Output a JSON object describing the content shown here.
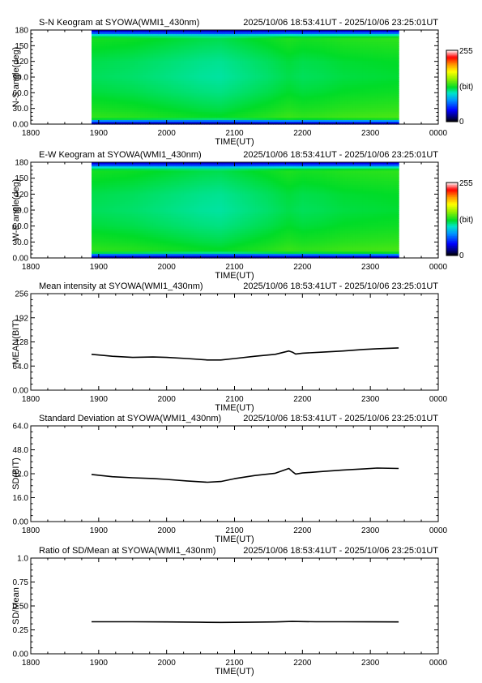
{
  "chart_data": [
    {
      "type": "heatmap",
      "title": "S-N Keogram at SYOWA(WMI1_430nm)",
      "time_range": "2025/10/06 18:53:41UT - 2025/10/06 23:25:01UT",
      "xlabel": "TIME(UT)",
      "ylabel": "N-S angle(deg)",
      "x_ticks": [
        "1800",
        "1900",
        "2000",
        "2100",
        "2200",
        "2300",
        "0000"
      ],
      "y_ticks": [
        "0.00",
        "30.0",
        "60.0",
        "90.0",
        "120",
        "150",
        "180"
      ],
      "xlim": [
        18.0,
        24.0
      ],
      "ylim": [
        0,
        180
      ],
      "data_extent_x": [
        18.895,
        23.417
      ],
      "colorbar": {
        "min_label": "0",
        "max_label": "255",
        "unit": "(bit)",
        "min": 0,
        "max": 255
      },
      "profile_angles": [
        0,
        5,
        8,
        11,
        15,
        30,
        60,
        90,
        120,
        150,
        165,
        170,
        173,
        176,
        180
      ],
      "profile_values": [
        20,
        60,
        105,
        130,
        130,
        125,
        118,
        114,
        116,
        122,
        125,
        100,
        70,
        45,
        25
      ],
      "time_modulation_hours": [
        18.9,
        19.5,
        20.0,
        20.5,
        20.8,
        21.0,
        21.5,
        21.8,
        22.0,
        22.3,
        22.6,
        23.0,
        23.4
      ],
      "time_modulation_bits": [
        2,
        0,
        -3,
        -6,
        -7,
        -5,
        0,
        4,
        2,
        3,
        5,
        6,
        7
      ]
    },
    {
      "type": "heatmap",
      "title": "E-W Keogram at SYOWA(WMI1_430nm)",
      "time_range": "2025/10/06 18:53:41UT - 2025/10/06 23:25:01UT",
      "xlabel": "TIME(UT)",
      "ylabel": "W-E angle(deg)",
      "x_ticks": [
        "1800",
        "1900",
        "2000",
        "2100",
        "2200",
        "2300",
        "0000"
      ],
      "y_ticks": [
        "0.00",
        "30.0",
        "60.0",
        "90.0",
        "120",
        "150",
        "180"
      ],
      "xlim": [
        18.0,
        24.0
      ],
      "ylim": [
        0,
        180
      ],
      "data_extent_x": [
        18.895,
        23.417
      ],
      "colorbar": {
        "min_label": "0",
        "max_label": "255",
        "unit": "(bit)",
        "min": 0,
        "max": 255
      },
      "profile_angles": [
        0,
        5,
        8,
        11,
        15,
        30,
        60,
        90,
        120,
        150,
        165,
        170,
        173,
        176,
        180
      ],
      "profile_values": [
        20,
        55,
        100,
        128,
        130,
        125,
        118,
        114,
        116,
        122,
        125,
        100,
        70,
        45,
        25
      ],
      "time_modulation_hours": [
        18.9,
        19.5,
        20.0,
        20.5,
        20.8,
        21.0,
        21.5,
        21.8,
        22.0,
        22.3,
        22.6,
        23.0,
        23.4
      ],
      "time_modulation_bits": [
        2,
        0,
        -3,
        -6,
        -7,
        -5,
        0,
        4,
        2,
        3,
        5,
        6,
        7
      ]
    },
    {
      "type": "line",
      "title": "Mean intensity at SYOWA(WMI1_430nm)",
      "time_range": "2025/10/06 18:53:41UT - 2025/10/06 23:25:01UT",
      "xlabel": "TIME(UT)",
      "ylabel": "MEAN(BIT)",
      "x_ticks": [
        "1800",
        "1900",
        "2000",
        "2100",
        "2200",
        "2300",
        "0000"
      ],
      "y_ticks": [
        "0.00",
        "64.0",
        "128",
        "192",
        "256"
      ],
      "xlim": [
        18.0,
        24.0
      ],
      "ylim": [
        0,
        256
      ],
      "x": [
        18.895,
        19.2,
        19.5,
        19.8,
        20.0,
        20.3,
        20.6,
        20.8,
        21.0,
        21.3,
        21.6,
        21.8,
        21.85,
        21.9,
        22.0,
        22.3,
        22.6,
        22.9,
        23.1,
        23.417
      ],
      "y": [
        95,
        90,
        87,
        88,
        87,
        84,
        80,
        80,
        84,
        90,
        95,
        104,
        101,
        96,
        98,
        101,
        104,
        108,
        110,
        112
      ]
    },
    {
      "type": "line",
      "title": "Standard Deviation at SYOWA(WMI1_430nm)",
      "time_range": "2025/10/06 18:53:41UT - 2025/10/06 23:25:01UT",
      "xlabel": "TIME(UT)",
      "ylabel": "SD(BIT)",
      "x_ticks": [
        "1800",
        "1900",
        "2000",
        "2100",
        "2200",
        "2300",
        "0000"
      ],
      "y_ticks": [
        "0.00",
        "16.0",
        "32.0",
        "48.0",
        "64.0"
      ],
      "xlim": [
        18.0,
        24.0
      ],
      "ylim": [
        0,
        64
      ],
      "x": [
        18.895,
        19.2,
        19.5,
        19.8,
        20.0,
        20.3,
        20.6,
        20.8,
        21.0,
        21.3,
        21.6,
        21.8,
        21.85,
        21.9,
        22.0,
        22.3,
        22.6,
        22.9,
        23.1,
        23.417
      ],
      "y": [
        31.5,
        30.0,
        29.3,
        28.8,
        28.2,
        27.2,
        26.3,
        26.8,
        28.7,
        30.8,
        32.3,
        35.5,
        33.5,
        31.8,
        32.5,
        33.5,
        34.5,
        35.2,
        35.8,
        35.5
      ]
    },
    {
      "type": "line",
      "title": "Ratio of SD/Mean at SYOWA(WMI1_430nm)",
      "time_range": "2025/10/06 18:53:41UT - 2025/10/06 23:25:01UT",
      "xlabel": "TIME(UT)",
      "ylabel": "SD/Mean",
      "x_ticks": [
        "1800",
        "1900",
        "2000",
        "2100",
        "2200",
        "2300",
        "0000"
      ],
      "y_ticks": [
        "0.00",
        "0.25",
        "0.50",
        "0.75",
        "1.0"
      ],
      "xlim": [
        18.0,
        24.0
      ],
      "ylim": [
        0,
        1
      ],
      "x": [
        18.895,
        19.5,
        20.0,
        20.5,
        20.8,
        21.2,
        21.6,
        21.85,
        22.2,
        22.6,
        23.0,
        23.417
      ],
      "y": [
        0.335,
        0.335,
        0.333,
        0.33,
        0.328,
        0.33,
        0.333,
        0.338,
        0.335,
        0.335,
        0.334,
        0.333
      ]
    }
  ]
}
